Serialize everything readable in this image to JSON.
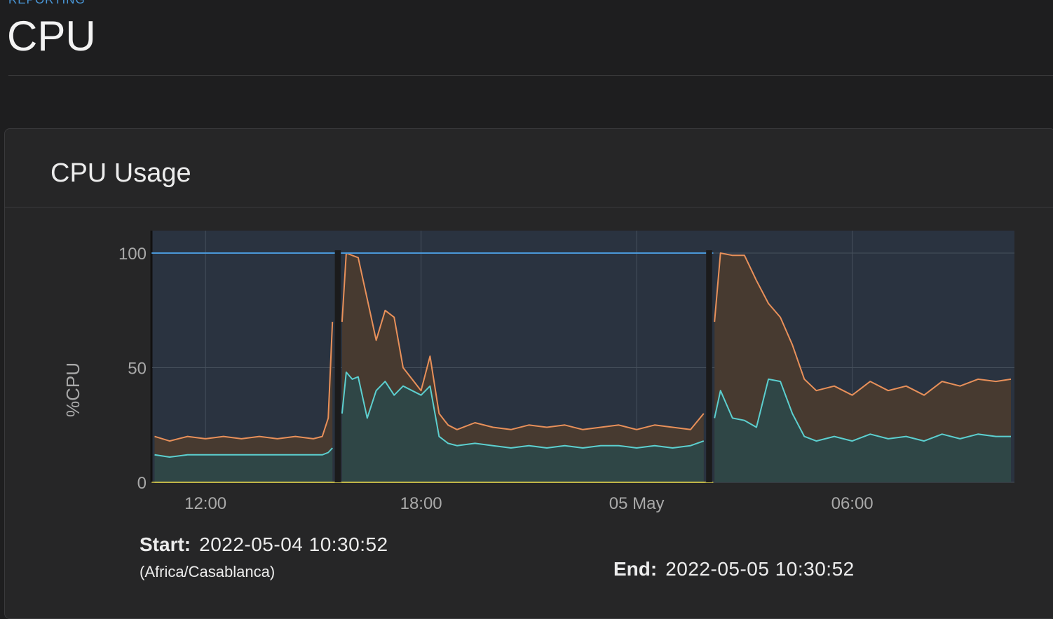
{
  "breadcrumb": "REPORTING",
  "page_title": "CPU",
  "card": {
    "title": "CPU Usage",
    "start_label": "Start:",
    "start_value": "2022-05-04 10:30:52",
    "timezone": "(Africa/Casablanca)",
    "end_label": "End:",
    "end_value": "2022-05-05 10:30:52"
  },
  "colors": {
    "total_series": "#e8905a",
    "user_series": "#5ccfcf",
    "limit_line": "#4a98d9",
    "baseline": "#d6c84a",
    "plot_background": "#2a3340"
  },
  "chart_data": {
    "type": "area",
    "ylabel": "%CPU",
    "ylim": [
      0,
      100
    ],
    "yticks": [
      0,
      50,
      100
    ],
    "xticks": [
      "12:00",
      "18:00",
      "05 May",
      "06:00"
    ],
    "x_range": [
      "2022-05-04 10:30:52",
      "2022-05-05 10:30:52"
    ],
    "grid": true,
    "gaps": [
      [
        "2022-05-04 15:36",
        "2022-05-04 15:46"
      ],
      [
        "2022-05-05 01:56",
        "2022-05-05 02:06"
      ]
    ],
    "limit_line": 100,
    "series": [
      {
        "key": "total",
        "segments": [
          {
            "x": [
              "10:35",
              "11:00",
              "11:30",
              "12:00",
              "12:30",
              "13:00",
              "13:30",
              "14:00",
              "14:30",
              "15:00",
              "15:15",
              "15:25",
              "15:32"
            ],
            "values": [
              20,
              18,
              20,
              19,
              20,
              19,
              20,
              19,
              20,
              19,
              20,
              28,
              70
            ]
          },
          {
            "x": [
              "15:48",
              "15:55",
              "16:05",
              "16:15",
              "16:30",
              "16:45",
              "17:00",
              "17:15",
              "17:30",
              "17:45",
              "18:00",
              "18:15",
              "18:30",
              "18:45",
              "19:00",
              "19:30",
              "20:00",
              "20:30",
              "21:00",
              "21:30",
              "22:00",
              "22:30",
              "23:00",
              "23:30",
              "00:00",
              "00:30",
              "01:00",
              "01:30",
              "01:52"
            ],
            "values": [
              70,
              100,
              99,
              98,
              80,
              62,
              75,
              72,
              50,
              45,
              40,
              55,
              30,
              25,
              23,
              26,
              24,
              23,
              25,
              24,
              25,
              23,
              24,
              25,
              23,
              25,
              24,
              23,
              30
            ]
          },
          {
            "x": [
              "02:10",
              "02:20",
              "02:40",
              "03:00",
              "03:20",
              "03:40",
              "04:00",
              "04:20",
              "04:40",
              "05:00",
              "05:30",
              "06:00",
              "06:30",
              "07:00",
              "07:30",
              "08:00",
              "08:30",
              "09:00",
              "09:30",
              "10:00",
              "10:25"
            ],
            "values": [
              70,
              100,
              99,
              99,
              88,
              78,
              72,
              60,
              45,
              40,
              42,
              38,
              44,
              40,
              42,
              38,
              44,
              42,
              45,
              44,
              45
            ]
          }
        ]
      },
      {
        "key": "user",
        "segments": [
          {
            "x": [
              "10:35",
              "11:00",
              "11:30",
              "12:00",
              "12:30",
              "13:00",
              "13:30",
              "14:00",
              "14:30",
              "15:00",
              "15:15",
              "15:25",
              "15:32"
            ],
            "values": [
              12,
              11,
              12,
              12,
              12,
              12,
              12,
              12,
              12,
              12,
              12,
              13,
              15
            ]
          },
          {
            "x": [
              "15:48",
              "15:55",
              "16:05",
              "16:15",
              "16:30",
              "16:45",
              "17:00",
              "17:15",
              "17:30",
              "17:45",
              "18:00",
              "18:15",
              "18:30",
              "18:45",
              "19:00",
              "19:30",
              "20:00",
              "20:30",
              "21:00",
              "21:30",
              "22:00",
              "22:30",
              "23:00",
              "23:30",
              "00:00",
              "00:30",
              "01:00",
              "01:30",
              "01:52"
            ],
            "values": [
              30,
              48,
              45,
              46,
              28,
              40,
              44,
              38,
              42,
              40,
              38,
              42,
              20,
              17,
              16,
              17,
              16,
              15,
              16,
              15,
              16,
              15,
              16,
              16,
              15,
              16,
              15,
              16,
              18
            ]
          },
          {
            "x": [
              "02:10",
              "02:20",
              "02:40",
              "03:00",
              "03:20",
              "03:40",
              "04:00",
              "04:20",
              "04:40",
              "05:00",
              "05:30",
              "06:00",
              "06:30",
              "07:00",
              "07:30",
              "08:00",
              "08:30",
              "09:00",
              "09:30",
              "10:00",
              "10:25"
            ],
            "values": [
              28,
              40,
              28,
              27,
              24,
              45,
              44,
              30,
              20,
              18,
              20,
              18,
              21,
              19,
              20,
              18,
              21,
              19,
              21,
              20,
              20
            ]
          }
        ]
      }
    ]
  }
}
